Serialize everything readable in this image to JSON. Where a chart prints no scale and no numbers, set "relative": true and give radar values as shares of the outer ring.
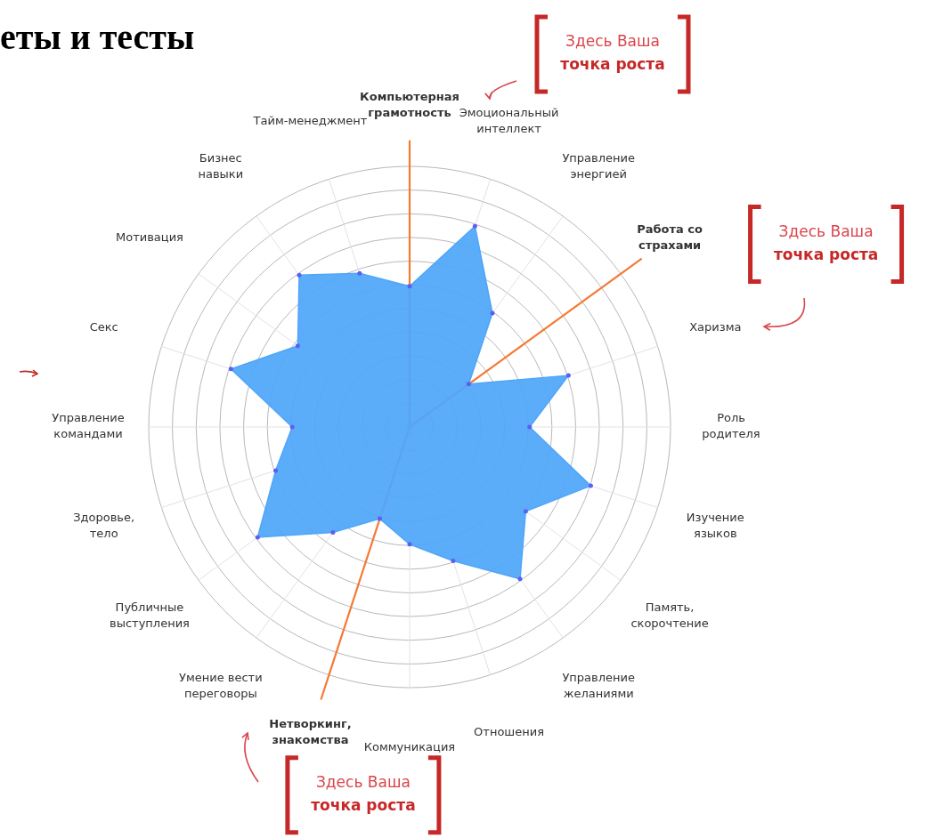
{
  "chart_data": {
    "type": "radar",
    "title": "еты и тесты",
    "relative": true,
    "marker": "circle",
    "legend": false,
    "grid": true,
    "categories": [
      "Компьютерная грамотность",
      "Эмоциональный интеллект",
      "Управление энергией",
      "Работа со страхами",
      "Харизма",
      "Роль родителя",
      "Изучение языков",
      "Память, скорочтение",
      "Управление желаниями",
      "Отношения",
      "Коммуникация",
      "Нетворкинг, знакомства",
      "Умение вести переговоры",
      "Публичные выступления",
      "Здоровье, тело",
      "Управление командами",
      "Секс",
      "Мотивация",
      "Бизнес навыки",
      "Тайм-менеджмент"
    ],
    "series": [
      {
        "color": "#4fa6f9",
        "values": [
          0.54,
          0.81,
          0.54,
          0.28,
          0.64,
          0.46,
          0.73,
          0.55,
          0.72,
          0.54,
          0.45,
          0.37,
          0.5,
          0.72,
          0.54,
          0.45,
          0.72,
          0.53,
          0.72,
          0.62
        ]
      }
    ],
    "annotations": [
      {
        "text": "Здесь Ваша точка роста",
        "x": "Компьютерная грамотность"
      },
      {
        "text": "Здесь Ваша точка роста",
        "x": "Работа со страхами"
      },
      {
        "text": "Здесь Ваша точка роста",
        "x": "Нетворкинг, знакомства"
      }
    ]
  }
}
